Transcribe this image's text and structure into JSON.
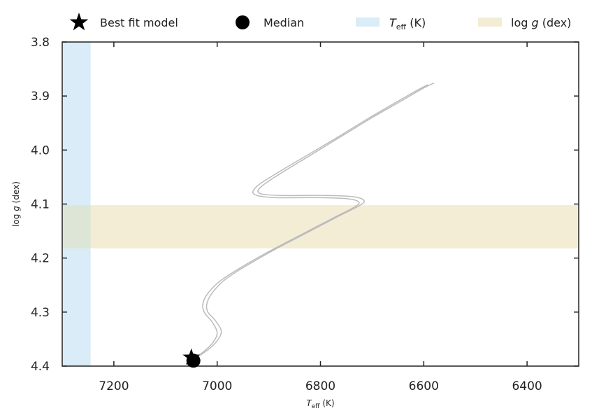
{
  "chart_data": {
    "type": "line",
    "xlabel": {
      "main": "T",
      "sub": "eff",
      "unit": " (K)"
    },
    "ylabel": {
      "pre": "log ",
      "var": "g",
      "unit": " (dex)"
    },
    "xlim": [
      7300,
      6300
    ],
    "ylim": [
      3.8,
      4.4
    ],
    "x_inverted": true,
    "y_inverted": true,
    "xticks": [
      7200,
      7000,
      6800,
      6600,
      6400
    ],
    "yticks": [
      3.8,
      3.9,
      4.0,
      4.1,
      4.2,
      4.3,
      4.4
    ],
    "ytick_labels": [
      "3.8",
      "3.9",
      "4.0",
      "4.1",
      "4.2",
      "4.3",
      "4.4"
    ],
    "grid": false,
    "legend_position": "top",
    "legend": [
      {
        "kind": "star",
        "label": "Best fit model"
      },
      {
        "kind": "circle",
        "label": "Median"
      },
      {
        "kind": "band",
        "label_main": "T",
        "label_sub": "eff",
        "label_unit": " (K)"
      },
      {
        "kind": "band",
        "label_pre": "log ",
        "label_var": "g",
        "label_unit": " (dex)"
      }
    ],
    "bands": [
      {
        "name": "teff-band",
        "axis": "x",
        "range": [
          7300,
          7245
        ],
        "color": "#d9ecf7"
      },
      {
        "name": "logg-band",
        "axis": "y",
        "range": [
          4.102,
          4.182
        ],
        "color": "#f3edd6"
      }
    ],
    "series": [
      {
        "color": "#bbbbbb",
        "points": [
          [
            7040,
            4.384
          ],
          [
            7018,
            4.37
          ],
          [
            7000,
            4.353
          ],
          [
            6992,
            4.335
          ],
          [
            7004,
            4.315
          ],
          [
            7018,
            4.3
          ],
          [
            7020,
            4.285
          ],
          [
            7010,
            4.265
          ],
          [
            6985,
            4.24
          ],
          [
            6945,
            4.215
          ],
          [
            6890,
            4.185
          ],
          [
            6830,
            4.155
          ],
          [
            6770,
            4.125
          ],
          [
            6725,
            4.103
          ],
          [
            6716,
            4.093
          ],
          [
            6740,
            4.086
          ],
          [
            6800,
            4.084
          ],
          [
            6880,
            4.084
          ],
          [
            6918,
            4.08
          ],
          [
            6915,
            4.068
          ],
          [
            6880,
            4.045
          ],
          [
            6820,
            4.01
          ],
          [
            6760,
            3.975
          ],
          [
            6700,
            3.94
          ],
          [
            6645,
            3.91
          ],
          [
            6600,
            3.885
          ],
          [
            6580,
            3.876
          ]
        ]
      },
      {
        "color": "#bbbbbb",
        "points": [
          [
            7048,
            4.388
          ],
          [
            7026,
            4.373
          ],
          [
            7008,
            4.356
          ],
          [
            7000,
            4.338
          ],
          [
            7010,
            4.318
          ],
          [
            7024,
            4.302
          ],
          [
            7028,
            4.287
          ],
          [
            7020,
            4.268
          ],
          [
            6995,
            4.243
          ],
          [
            6955,
            4.218
          ],
          [
            6900,
            4.188
          ],
          [
            6840,
            4.158
          ],
          [
            6780,
            4.128
          ],
          [
            6735,
            4.106
          ],
          [
            6726,
            4.096
          ],
          [
            6750,
            4.09
          ],
          [
            6810,
            4.088
          ],
          [
            6890,
            4.088
          ],
          [
            6928,
            4.082
          ],
          [
            6924,
            4.068
          ],
          [
            6890,
            4.046
          ],
          [
            6830,
            4.012
          ],
          [
            6768,
            3.977
          ],
          [
            6710,
            3.943
          ],
          [
            6656,
            3.913
          ],
          [
            6612,
            3.889
          ],
          [
            6592,
            3.879
          ]
        ]
      }
    ],
    "markers": [
      {
        "name": "best-fit-marker",
        "kind": "star",
        "x": 7050,
        "y": 4.384
      },
      {
        "name": "median-marker",
        "kind": "circle",
        "x": 7046,
        "y": 4.39
      }
    ]
  }
}
